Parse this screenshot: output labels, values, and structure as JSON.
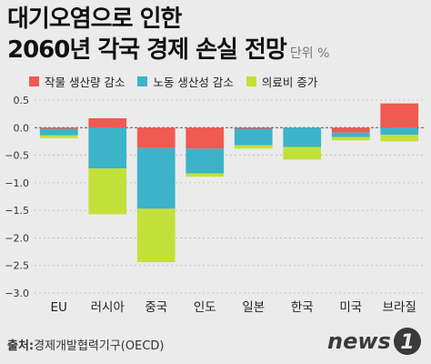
{
  "title": {
    "line1": "대기오염으로 인한",
    "line2": "2060년 각국 경제 손실 전망",
    "unit": "단위 %"
  },
  "legend": [
    {
      "label": "작물 생산량 감소",
      "color": "#f05a50"
    },
    {
      "label": "노동 생산성 감소",
      "color": "#3cb3c8"
    },
    {
      "label": "의료비 증가",
      "color": "#c3e03a"
    }
  ],
  "chart_data": {
    "type": "bar",
    "stacked": true,
    "categories": [
      "EU",
      "러시아",
      "중국",
      "인도",
      "일본",
      "한국",
      "미국",
      "브라질"
    ],
    "series": [
      {
        "name": "작물 생산량 감소",
        "color": "#f05a50",
        "values": [
          -0.02,
          0.17,
          -0.37,
          -0.38,
          -0.02,
          0.0,
          -0.09,
          0.44
        ]
      },
      {
        "name": "노동 생산성 감소",
        "color": "#3cb3c8",
        "values": [
          -0.12,
          -0.74,
          -1.1,
          -0.45,
          -0.3,
          -0.35,
          -0.08,
          -0.13
        ]
      },
      {
        "name": "의료비 증가",
        "color": "#c3e03a",
        "values": [
          -0.05,
          -0.83,
          -0.97,
          -0.06,
          -0.06,
          -0.23,
          -0.06,
          -0.12
        ]
      }
    ],
    "yticks": [
      "0.5",
      "0.0",
      "−0.5",
      "−1.0",
      "−1.5",
      "−2.0",
      "−2.5",
      "−3.0"
    ],
    "ylim": [
      -3.0,
      0.5
    ],
    "grid": true
  },
  "source": {
    "label": "출처:",
    "text": "경제개발협력기구(OECD)"
  },
  "logo": {
    "text": "news",
    "mark": "1"
  }
}
